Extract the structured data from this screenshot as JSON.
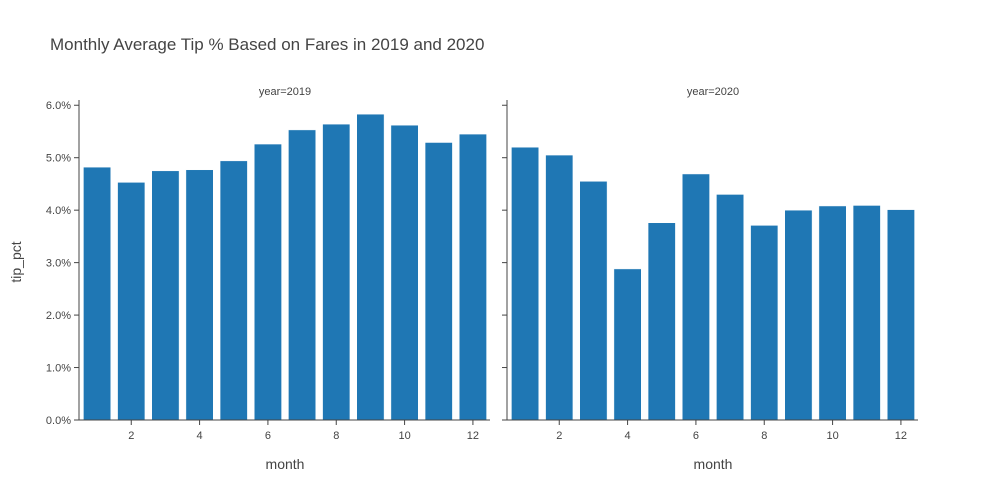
{
  "chart_data": {
    "type": "bar",
    "title": "Monthly Average Tip % Based on Fares in 2019 and 2020",
    "ylabel": "tip_pct",
    "ylim": [
      0,
      6.1
    ],
    "yticks": [
      0,
      1,
      2,
      3,
      4,
      5,
      6
    ],
    "ytick_labels": [
      "0.0%",
      "1.0%",
      "2.0%",
      "3.0%",
      "4.0%",
      "5.0%",
      "6.0%"
    ],
    "bar_color": "#1f77b4",
    "facets": [
      {
        "label": "year=2019",
        "xlabel": "month",
        "xticks": [
          2,
          4,
          6,
          8,
          10,
          12
        ],
        "months": [
          1,
          2,
          3,
          4,
          5,
          6,
          7,
          8,
          9,
          10,
          11,
          12
        ],
        "values": [
          4.82,
          4.53,
          4.75,
          4.77,
          4.94,
          5.26,
          5.53,
          5.64,
          5.83,
          5.62,
          5.29,
          5.45
        ]
      },
      {
        "label": "year=2020",
        "xlabel": "month",
        "xticks": [
          2,
          4,
          6,
          8,
          10,
          12
        ],
        "months": [
          1,
          2,
          3,
          4,
          5,
          6,
          7,
          8,
          9,
          10,
          11,
          12
        ],
        "values": [
          5.2,
          5.05,
          4.55,
          2.88,
          3.76,
          4.69,
          4.3,
          3.71,
          4.0,
          4.08,
          4.09,
          4.01
        ]
      }
    ]
  }
}
